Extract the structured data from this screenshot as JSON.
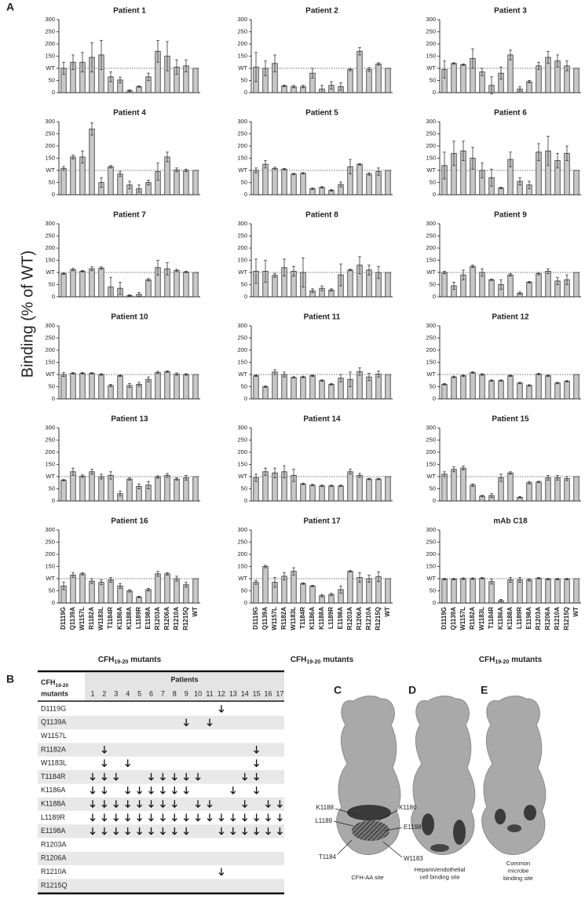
{
  "panel_a": "A",
  "panel_b": "B",
  "y_label": "Binding (% of WT)",
  "chart_data": [
    {
      "type": "bar",
      "title": "Patient 1",
      "color": "#c8c8c8",
      "ylim": [
        0,
        300
      ],
      "yticks": [
        0,
        50,
        {
          "value": 100,
          "label": "WT"
        },
        150,
        200,
        250,
        300
      ],
      "values": [
        100,
        125,
        125,
        145,
        155,
        65,
        52,
        8,
        25,
        65,
        170,
        150,
        105,
        110,
        100
      ],
      "errors": [
        25,
        30,
        40,
        60,
        60,
        20,
        12,
        4,
        3,
        15,
        45,
        60,
        30,
        25,
        null
      ]
    },
    {
      "type": "bar",
      "title": "Patient 2",
      "color": "#c8c8c8",
      "ylim": [
        0,
        300
      ],
      "yticks": [
        0,
        50,
        {
          "value": 100,
          "label": "WT"
        },
        150,
        200,
        250,
        300
      ],
      "values": [
        105,
        100,
        120,
        28,
        25,
        25,
        80,
        15,
        30,
        25,
        95,
        170,
        95,
        118,
        100
      ],
      "errors": [
        60,
        30,
        35,
        3,
        5,
        5,
        20,
        15,
        15,
        15,
        5,
        15,
        8,
        5,
        null
      ]
    },
    {
      "type": "bar",
      "title": "Patient 3",
      "color": "#c8c8c8",
      "ylim": [
        0,
        300
      ],
      "yticks": [
        0,
        50,
        {
          "value": 100,
          "label": "WT"
        },
        150,
        200,
        250,
        300
      ],
      "values": [
        95,
        120,
        115,
        140,
        85,
        30,
        80,
        155,
        15,
        45,
        110,
        145,
        130,
        110,
        100
      ],
      "errors": [
        35,
        3,
        3,
        40,
        15,
        35,
        25,
        20,
        10,
        5,
        15,
        25,
        25,
        20,
        null
      ]
    },
    {
      "type": "bar",
      "title": "Patient 4",
      "color": "#c8c8c8",
      "ylim": [
        0,
        300
      ],
      "yticks": [
        0,
        50,
        {
          "value": 100,
          "label": "WT"
        },
        150,
        200,
        250,
        300
      ],
      "values": [
        108,
        155,
        155,
        270,
        50,
        115,
        85,
        40,
        25,
        50,
        95,
        155,
        102,
        100,
        100
      ],
      "errors": [
        8,
        8,
        25,
        25,
        20,
        5,
        10,
        15,
        15,
        10,
        35,
        20,
        8,
        5,
        null
      ]
    },
    {
      "type": "bar",
      "title": "Patient 5",
      "color": "#c8c8c8",
      "ylim": [
        0,
        300
      ],
      "yticks": [
        0,
        50,
        {
          "value": 100,
          "label": "WT"
        },
        150,
        200,
        250,
        300
      ],
      "values": [
        100,
        125,
        108,
        105,
        85,
        88,
        25,
        30,
        18,
        42,
        115,
        125,
        85,
        95,
        100
      ],
      "errors": [
        10,
        15,
        5,
        3,
        3,
        3,
        3,
        3,
        3,
        10,
        30,
        3,
        5,
        15,
        null
      ]
    },
    {
      "type": "bar",
      "title": "Patient 6",
      "color": "#c8c8c8",
      "ylim": [
        0,
        300
      ],
      "yticks": [
        0,
        50,
        {
          "value": 100,
          "label": "WT"
        },
        150,
        200,
        250,
        300
      ],
      "values": [
        120,
        170,
        180,
        150,
        100,
        70,
        28,
        145,
        55,
        40,
        175,
        180,
        140,
        170,
        100
      ],
      "errors": [
        55,
        50,
        40,
        45,
        30,
        35,
        3,
        30,
        15,
        15,
        35,
        60,
        30,
        30,
        null
      ]
    },
    {
      "type": "bar",
      "title": "Patient 7",
      "color": "#c8c8c8",
      "ylim": [
        0,
        300
      ],
      "yticks": [
        0,
        50,
        {
          "value": 100,
          "label": "WT"
        },
        150,
        200,
        250,
        300
      ],
      "values": [
        95,
        112,
        105,
        115,
        118,
        40,
        35,
        5,
        10,
        70,
        120,
        115,
        108,
        102,
        100
      ],
      "errors": [
        3,
        5,
        3,
        8,
        5,
        40,
        25,
        3,
        8,
        5,
        30,
        25,
        5,
        3,
        null
      ]
    },
    {
      "type": "bar",
      "title": "Patient 8",
      "color": "#c8c8c8",
      "ylim": [
        0,
        300
      ],
      "yticks": [
        0,
        50,
        {
          "value": 100,
          "label": "WT"
        },
        150,
        200,
        250,
        300
      ],
      "values": [
        105,
        105,
        88,
        120,
        105,
        100,
        25,
        35,
        28,
        90,
        110,
        130,
        110,
        100,
        100
      ],
      "errors": [
        50,
        45,
        8,
        35,
        20,
        60,
        8,
        10,
        5,
        45,
        3,
        35,
        20,
        25,
        null
      ]
    },
    {
      "type": "bar",
      "title": "Patient 9",
      "color": "#c8c8c8",
      "ylim": [
        0,
        300
      ],
      "yticks": [
        0,
        50,
        {
          "value": 100,
          "label": "WT"
        },
        150,
        200,
        250,
        300
      ],
      "values": [
        100,
        45,
        90,
        125,
        100,
        70,
        50,
        90,
        15,
        60,
        95,
        105,
        65,
        70,
        100
      ],
      "errors": [
        5,
        15,
        20,
        5,
        15,
        3,
        20,
        5,
        5,
        3,
        5,
        10,
        15,
        20,
        null
      ]
    },
    {
      "type": "bar",
      "title": "Patient 10",
      "color": "#c8c8c8",
      "ylim": [
        0,
        300
      ],
      "yticks": [
        0,
        50,
        {
          "value": 100,
          "label": "WT"
        },
        150,
        200,
        250,
        300
      ],
      "values": [
        100,
        105,
        105,
        105,
        100,
        55,
        95,
        55,
        60,
        80,
        108,
        112,
        102,
        100,
        100
      ],
      "errors": [
        8,
        3,
        3,
        3,
        3,
        5,
        3,
        8,
        8,
        10,
        5,
        3,
        5,
        3,
        null
      ]
    },
    {
      "type": "bar",
      "title": "Patient 11",
      "color": "#c8c8c8",
      "ylim": [
        0,
        300
      ],
      "yticks": [
        0,
        50,
        {
          "value": 100,
          "label": "WT"
        },
        150,
        200,
        250,
        300
      ],
      "values": [
        95,
        50,
        110,
        100,
        88,
        90,
        95,
        75,
        60,
        85,
        80,
        112,
        90,
        102,
        100
      ],
      "errors": [
        3,
        3,
        10,
        10,
        3,
        3,
        3,
        3,
        3,
        15,
        30,
        15,
        15,
        12,
        null
      ]
    },
    {
      "type": "bar",
      "title": "Patient 12",
      "color": "#c8c8c8",
      "ylim": [
        0,
        300
      ],
      "yticks": [
        0,
        50,
        {
          "value": 100,
          "label": "WT"
        },
        150,
        200,
        250,
        300
      ],
      "values": [
        60,
        90,
        95,
        108,
        100,
        75,
        75,
        95,
        65,
        55,
        102,
        95,
        65,
        72,
        100
      ],
      "errors": [
        3,
        3,
        3,
        3,
        3,
        3,
        3,
        3,
        3,
        3,
        3,
        3,
        3,
        3,
        null
      ]
    },
    {
      "type": "bar",
      "title": "Patient 13",
      "color": "#c8c8c8",
      "ylim": [
        0,
        300
      ],
      "yticks": [
        0,
        50,
        {
          "value": 100,
          "label": "WT"
        },
        150,
        200,
        250,
        300
      ],
      "values": [
        85,
        120,
        102,
        120,
        100,
        105,
        30,
        90,
        60,
        65,
        98,
        105,
        90,
        95,
        100
      ],
      "errors": [
        3,
        15,
        5,
        10,
        10,
        15,
        10,
        5,
        10,
        15,
        5,
        8,
        5,
        10,
        null
      ]
    },
    {
      "type": "bar",
      "title": "Patient 14",
      "color": "#c8c8c8",
      "ylim": [
        0,
        300
      ],
      "yticks": [
        0,
        50,
        {
          "value": 100,
          "label": "WT"
        },
        150,
        200,
        250,
        300
      ],
      "values": [
        95,
        120,
        115,
        120,
        105,
        70,
        65,
        62,
        62,
        62,
        120,
        105,
        90,
        90,
        100
      ],
      "errors": [
        15,
        15,
        20,
        25,
        25,
        3,
        3,
        3,
        3,
        3,
        10,
        8,
        3,
        3,
        null
      ]
    },
    {
      "type": "bar",
      "title": "Patient 15",
      "color": "#c8c8c8",
      "ylim": [
        0,
        300
      ],
      "yticks": [
        0,
        50,
        {
          "value": 100,
          "label": "WT"
        },
        150,
        200,
        250,
        300
      ],
      "values": [
        110,
        130,
        135,
        65,
        20,
        22,
        95,
        115,
        15,
        75,
        78,
        95,
        95,
        92,
        100
      ],
      "errors": [
        10,
        10,
        8,
        5,
        3,
        8,
        15,
        5,
        3,
        5,
        3,
        10,
        10,
        8,
        null
      ]
    },
    {
      "type": "bar",
      "title": "Patient 16",
      "color": "#c8c8c8",
      "ylim": [
        0,
        300
      ],
      "yticks": [
        0,
        50,
        {
          "value": 100,
          "label": "WT"
        },
        150,
        200,
        250,
        300
      ],
      "values": [
        70,
        115,
        120,
        90,
        85,
        95,
        70,
        50,
        25,
        55,
        120,
        120,
        100,
        75,
        100
      ],
      "errors": [
        15,
        10,
        5,
        10,
        10,
        10,
        10,
        5,
        3,
        5,
        10,
        5,
        10,
        10,
        null
      ],
      "categories": [
        "D1119G",
        "Q1139A",
        "W1157L",
        "R1182A",
        "W1183L",
        "T1184R",
        "K1186A",
        "K1188A",
        "L1189R",
        "E1198A",
        "R1203A",
        "R1206A",
        "R1210A",
        "R1215Q",
        "WT"
      ],
      "x_label": {
        "main": "CFH",
        "sub": "19-20",
        "rest": "mutants"
      }
    },
    {
      "type": "bar",
      "title": "Patient 17",
      "color": "#c8c8c8",
      "ylim": [
        0,
        300
      ],
      "yticks": [
        0,
        50,
        {
          "value": 100,
          "label": "WT"
        },
        150,
        200,
        250,
        300
      ],
      "values": [
        85,
        150,
        85,
        110,
        130,
        80,
        70,
        30,
        35,
        55,
        130,
        105,
        100,
        108,
        100
      ],
      "errors": [
        8,
        5,
        20,
        15,
        15,
        3,
        3,
        5,
        5,
        15,
        3,
        20,
        15,
        20,
        null
      ],
      "categories": [
        "D1119G",
        "Q1139A",
        "W1157L",
        "R1182A",
        "W1183L",
        "T1184R",
        "K1186A",
        "K1188A",
        "L1189R",
        "E1198A",
        "R1203A",
        "R1206A",
        "R1210A",
        "R1215Q",
        "WT"
      ],
      "x_label": {
        "main": "CFH",
        "sub": "19-20",
        "rest": "mutants"
      }
    },
    {
      "type": "bar",
      "title": "mAb C18",
      "color": "#c8c8c8",
      "ylim": [
        0,
        300
      ],
      "yticks": [
        0,
        50,
        {
          "value": 100,
          "label": "WT"
        },
        150,
        200,
        250,
        300
      ],
      "values": [
        98,
        98,
        100,
        100,
        102,
        88,
        10,
        95,
        95,
        95,
        102,
        98,
        98,
        98,
        100
      ],
      "errors": [
        3,
        3,
        3,
        3,
        3,
        10,
        5,
        10,
        10,
        5,
        3,
        3,
        3,
        3,
        null
      ],
      "categories": [
        "D1119G",
        "Q1139A",
        "W1157L",
        "R1182A",
        "W1183L",
        "T1184R",
        "K1186A",
        "K1188A",
        "L1189R",
        "E1198A",
        "R1203A",
        "R1206A",
        "R1210A",
        "R1215Q",
        "WT"
      ],
      "x_label": {
        "main": "CFH",
        "sub": "19-20",
        "rest": "mutants"
      }
    }
  ],
  "table": {
    "header": {
      "mutants_main": "CFH",
      "mutants_sub": "19-20",
      "mutants_line2": "mutants",
      "patients": "Patients",
      "columns": [
        1,
        2,
        3,
        4,
        5,
        6,
        7,
        8,
        9,
        10,
        11,
        12,
        13,
        14,
        15,
        16,
        17
      ]
    },
    "rows": [
      {
        "mutant": "D1119G",
        "decreased": [
          12
        ]
      },
      {
        "mutant": "Q1139A",
        "decreased": [
          9,
          11
        ]
      },
      {
        "mutant": "W1157L",
        "decreased": []
      },
      {
        "mutant": "R1182A",
        "decreased": [
          2,
          15
        ]
      },
      {
        "mutant": "W1183L",
        "decreased": [
          2,
          4,
          15
        ]
      },
      {
        "mutant": "T1184R",
        "decreased": [
          1,
          2,
          3,
          6,
          7,
          8,
          9,
          10,
          14,
          15
        ]
      },
      {
        "mutant": "K1186A",
        "decreased": [
          1,
          2,
          4,
          5,
          6,
          7,
          8,
          9,
          13,
          15
        ]
      },
      {
        "mutant": "K1188A",
        "decreased": [
          1,
          2,
          3,
          4,
          5,
          6,
          7,
          8,
          10,
          11,
          14,
          16,
          17
        ]
      },
      {
        "mutant": "L1189R",
        "decreased": [
          1,
          2,
          3,
          4,
          5,
          6,
          7,
          8,
          9,
          10,
          11,
          12,
          13,
          14,
          15,
          16,
          17
        ]
      },
      {
        "mutant": "E1198A",
        "decreased": [
          1,
          2,
          3,
          4,
          5,
          6,
          7,
          8,
          9,
          12,
          13,
          14,
          15,
          16,
          17
        ]
      },
      {
        "mutant": "R1203A",
        "decreased": []
      },
      {
        "mutant": "R1206A",
        "decreased": []
      },
      {
        "mutant": "R1210A",
        "decreased": [
          12
        ]
      },
      {
        "mutant": "R1215Q",
        "decreased": []
      }
    ]
  },
  "structures": [
    {
      "panel": "C",
      "caption": [
        "CFH-AA site"
      ],
      "residues": [
        "K1188",
        "L1189",
        "K1186",
        "E1198",
        "W1183",
        "T1184"
      ]
    },
    {
      "panel": "D",
      "caption": [
        "Heparin/endothelial",
        "cell binding site"
      ]
    },
    {
      "panel": "E",
      "caption": [
        "Common",
        "microbe",
        "binding site"
      ]
    }
  ]
}
